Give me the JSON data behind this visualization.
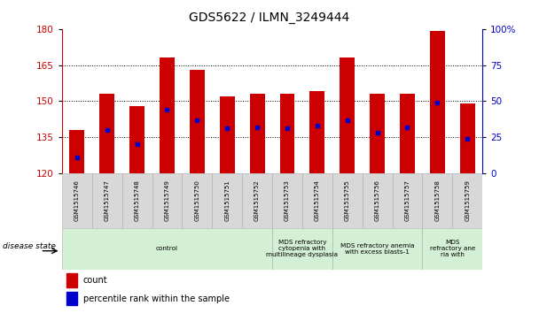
{
  "title": "GDS5622 / ILMN_3249444",
  "samples": [
    "GSM1515746",
    "GSM1515747",
    "GSM1515748",
    "GSM1515749",
    "GSM1515750",
    "GSM1515751",
    "GSM1515752",
    "GSM1515753",
    "GSM1515754",
    "GSM1515755",
    "GSM1515756",
    "GSM1515757",
    "GSM1515758",
    "GSM1515759"
  ],
  "counts": [
    138,
    153,
    148,
    168,
    163,
    152,
    153,
    153,
    154,
    168,
    153,
    153,
    179,
    149
  ],
  "percentile_ranks": [
    11,
    30,
    20,
    44,
    37,
    31,
    32,
    31,
    33,
    37,
    28,
    32,
    49,
    24
  ],
  "ymin": 120,
  "ymax": 180,
  "y2min": 0,
  "y2max": 100,
  "yticks": [
    120,
    135,
    150,
    165,
    180
  ],
  "y2ticks": [
    0,
    25,
    50,
    75,
    100
  ],
  "bar_color": "#cc0000",
  "dot_color": "#0000cc",
  "bar_width": 0.5,
  "disease_groups": [
    {
      "label": "control",
      "start": 0,
      "end": 7
    },
    {
      "label": "MDS refractory\ncytopenia with\nmultilineage dysplasia",
      "start": 7,
      "end": 9
    },
    {
      "label": "MDS refractory anemia\nwith excess blasts-1",
      "start": 9,
      "end": 12
    },
    {
      "label": "MDS\nrefractory ane\nria with",
      "start": 12,
      "end": 14
    }
  ],
  "group_color": "#d4f0d4",
  "sample_box_color": "#d8d8d8",
  "legend_count_label": "count",
  "legend_percentile_label": "percentile rank within the sample",
  "disease_state_label": "disease state"
}
